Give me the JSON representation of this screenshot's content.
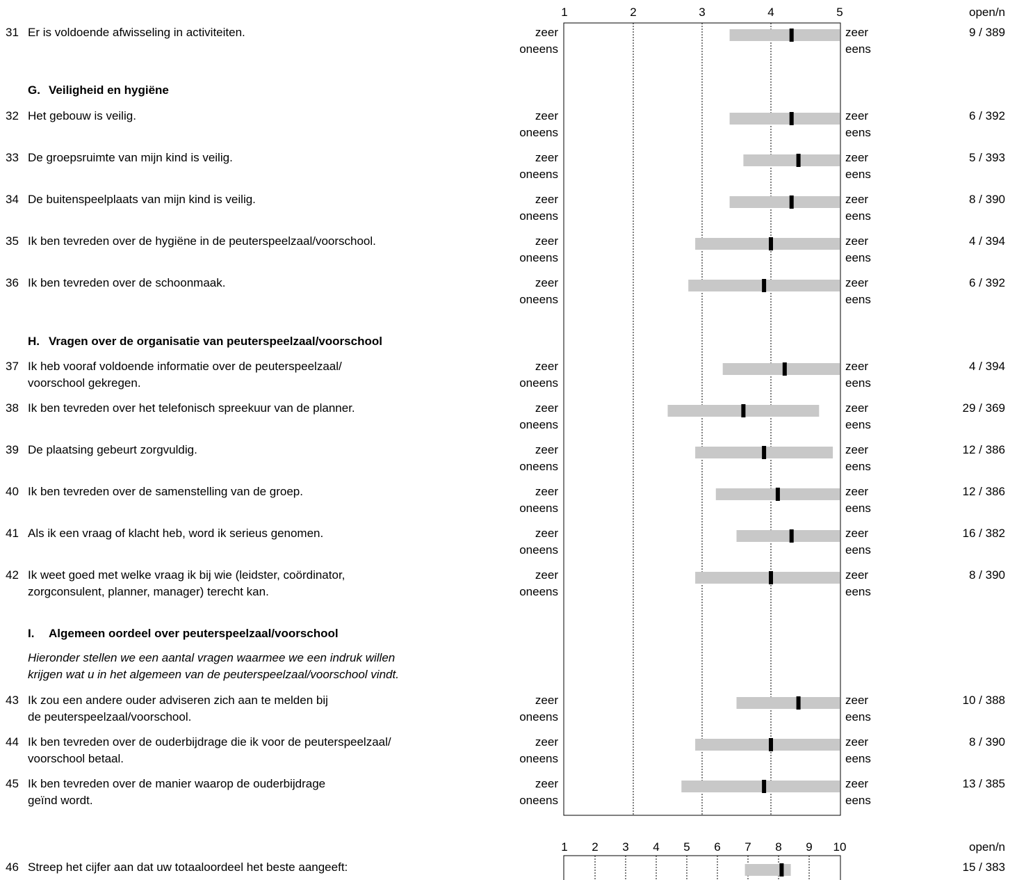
{
  "scale_labels": {
    "left_top": "zeer",
    "left_bottom": "oneens",
    "right_top": "zeer",
    "right_bottom": "eens"
  },
  "header": {
    "ticks": [
      "1",
      "2",
      "3",
      "4",
      "5"
    ],
    "open_n": "open/n"
  },
  "sections": {
    "G": {
      "letter": "G.",
      "title": "Veiligheid en hygiëne"
    },
    "H": {
      "letter": "H.",
      "title": "Vragen over de organisatie van peuterspeelzaal/voorschool"
    },
    "I": {
      "letter": "I.",
      "title": "Algemeen oordeel over peuterspeelzaal/voorschool",
      "intro_1": "Hieronder stellen we een aantal vragen waarmee we een indruk willen",
      "intro_2": "krijgen wat u in het algemeen van de peuterspeelzaal/voorschool vindt."
    }
  },
  "questions": [
    {
      "num": "31",
      "line1": "Er is voldoende afwisseling in activiteiten.",
      "line2": "",
      "open_n": "9 / 389"
    },
    {
      "num": "32",
      "line1": "Het gebouw is veilig.",
      "line2": "",
      "open_n": "6 / 392"
    },
    {
      "num": "33",
      "line1": "De groepsruimte van mijn kind is veilig.",
      "line2": "",
      "open_n": "5 / 393"
    },
    {
      "num": "34",
      "line1": "De buitenspeelplaats van mijn kind is veilig.",
      "line2": "",
      "open_n": "8 / 390"
    },
    {
      "num": "35",
      "line1": "Ik ben tevreden over de hygiëne in de peuterspeelzaal/voorschool.",
      "line2": "",
      "open_n": "4 / 394"
    },
    {
      "num": "36",
      "line1": "Ik ben tevreden over de schoonmaak.",
      "line2": "",
      "open_n": "6 / 392"
    },
    {
      "num": "37",
      "line1": "Ik heb vooraf voldoende informatie over de peuterspeelzaal/",
      "line2": "voorschool gekregen.",
      "open_n": "4 / 394"
    },
    {
      "num": "38",
      "line1": "Ik ben tevreden over het telefonisch spreekuur van de planner.",
      "line2": "",
      "open_n": "29 / 369"
    },
    {
      "num": "39",
      "line1": "De plaatsing gebeurt zorgvuldig.",
      "line2": "",
      "open_n": "12 / 386"
    },
    {
      "num": "40",
      "line1": "Ik ben tevreden over de samenstelling van de groep.",
      "line2": "",
      "open_n": "12 / 386"
    },
    {
      "num": "41",
      "line1": "Als ik een vraag of klacht heb, word ik serieus genomen.",
      "line2": "",
      "open_n": "16 / 382"
    },
    {
      "num": "42",
      "line1": "Ik weet goed met welke vraag ik bij wie (leidster, coördinator,",
      "line2": "zorgconsulent, planner, manager) terecht kan.",
      "open_n": "8 / 390"
    },
    {
      "num": "43",
      "line1": "Ik zou een andere ouder adviseren zich aan te melden bij",
      "line2": "de peuterspeelzaal/voorschool.",
      "open_n": "10 / 388"
    },
    {
      "num": "44",
      "line1": "Ik ben tevreden over de ouderbijdrage die ik voor de peuterspeelzaal/",
      "line2": "voorschool betaal.",
      "open_n": "8 / 390"
    },
    {
      "num": "45",
      "line1": "Ik ben tevreden over de manier waarop de ouderbijdrage",
      "line2": "geïnd wordt.",
      "open_n": "13 / 385"
    },
    {
      "num": "46",
      "line1": "Streep het cijfer aan dat uw totaaloordeel het beste aangeeft:",
      "line2": "",
      "open_n": "15 / 383"
    }
  ],
  "chart_data": [
    {
      "type": "range-bar",
      "xlim": [
        1,
        5
      ],
      "ticks": [
        1,
        2,
        3,
        4,
        5
      ],
      "grid": "dotted vertical at 2, 3, 4",
      "items": [
        {
          "q": "31",
          "low": 3.4,
          "high": 5.0,
          "mean": 4.3
        },
        {
          "q": "32",
          "low": 3.4,
          "high": 5.0,
          "mean": 4.3
        },
        {
          "q": "33",
          "low": 3.6,
          "high": 5.0,
          "mean": 4.4
        },
        {
          "q": "34",
          "low": 3.4,
          "high": 5.0,
          "mean": 4.3
        },
        {
          "q": "35",
          "low": 2.9,
          "high": 5.0,
          "mean": 4.0
        },
        {
          "q": "36",
          "low": 2.8,
          "high": 5.0,
          "mean": 3.9
        },
        {
          "q": "37",
          "low": 3.3,
          "high": 5.0,
          "mean": 4.2
        },
        {
          "q": "38",
          "low": 2.5,
          "high": 4.7,
          "mean": 3.6
        },
        {
          "q": "39",
          "low": 2.9,
          "high": 4.9,
          "mean": 3.9
        },
        {
          "q": "40",
          "low": 3.2,
          "high": 5.0,
          "mean": 4.1
        },
        {
          "q": "41",
          "low": 3.5,
          "high": 5.0,
          "mean": 4.3
        },
        {
          "q": "42",
          "low": 2.9,
          "high": 5.0,
          "mean": 4.0
        },
        {
          "q": "43",
          "low": 3.5,
          "high": 5.0,
          "mean": 4.4
        },
        {
          "q": "44",
          "low": 2.9,
          "high": 5.0,
          "mean": 4.0
        },
        {
          "q": "45",
          "low": 2.7,
          "high": 5.0,
          "mean": 3.9
        }
      ]
    },
    {
      "type": "range-bar",
      "xlim": [
        1,
        10
      ],
      "ticks": [
        1,
        2,
        3,
        4,
        5,
        6,
        7,
        8,
        9,
        10
      ],
      "ticklabels": [
        "1",
        "2",
        "3",
        "4",
        "5",
        "6",
        "7",
        "8",
        "9",
        "10"
      ],
      "items": [
        {
          "q": "46",
          "low": 6.9,
          "high": 8.4,
          "mean": 8.1
        }
      ]
    }
  ],
  "colors": {
    "range": "#c8c8c8",
    "mean": "#000000",
    "frame": "#000000"
  }
}
